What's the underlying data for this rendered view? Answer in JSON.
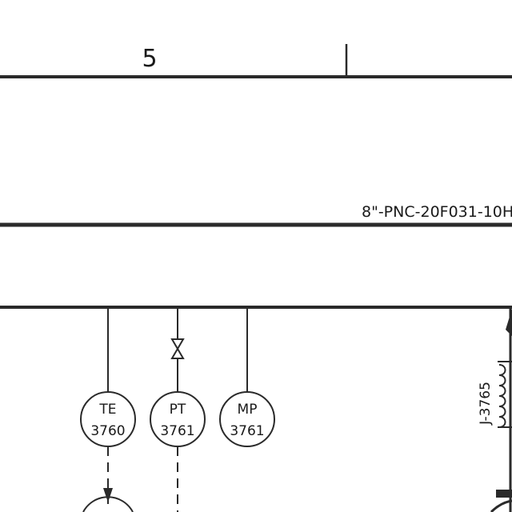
{
  "zone": {
    "number": "5"
  },
  "line_tag": {
    "text": "8\"-PNC-20F031-10H"
  },
  "instruments": [
    {
      "func": "TE",
      "num": "3760"
    },
    {
      "func": "PT",
      "num": "3761"
    },
    {
      "func": "MP",
      "num": "3761"
    }
  ],
  "heat_tracing": {
    "label": "J-3765"
  }
}
